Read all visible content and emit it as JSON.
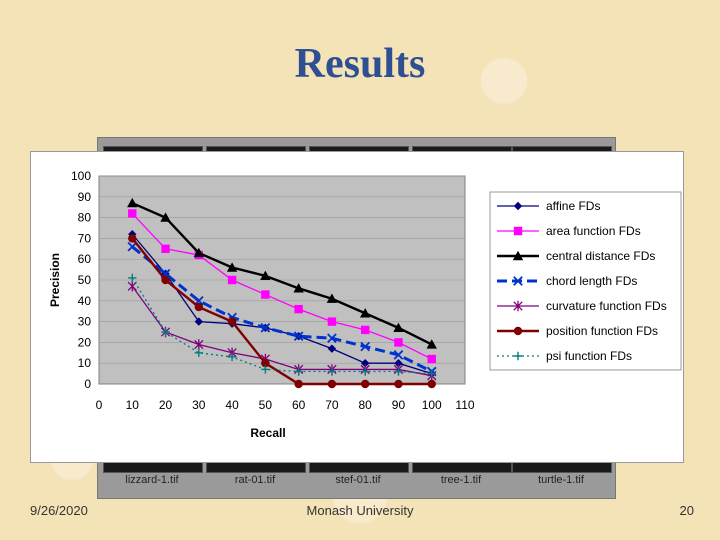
{
  "slide": {
    "title": "Results",
    "date": "9/26/2020",
    "organization": "Monash University",
    "page_number": "20"
  },
  "thumbnails": [
    "lizzard-1.tif",
    "rat-01.tif",
    "stef-01.tif",
    "tree-1.tif",
    "turtle-1.tif"
  ],
  "chart_data": {
    "type": "line",
    "title": "",
    "xlabel": "Recall",
    "ylabel": "Precision",
    "xlim": [
      0,
      110
    ],
    "ylim": [
      0,
      100
    ],
    "xticks": [
      0,
      10,
      20,
      30,
      40,
      50,
      60,
      70,
      80,
      90,
      100,
      110
    ],
    "yticks": [
      0,
      10,
      20,
      30,
      40,
      50,
      60,
      70,
      80,
      90,
      100
    ],
    "x": [
      10,
      20,
      30,
      40,
      50,
      60,
      70,
      80,
      90,
      100
    ],
    "series": [
      {
        "name": "affine FDs",
        "color": "#00007f",
        "marker": "diamond",
        "dash": "solid",
        "values": [
          72,
          53,
          30,
          29,
          27,
          23,
          17,
          10,
          10,
          5
        ]
      },
      {
        "name": "area function FDs",
        "color": "#ff00ff",
        "marker": "square",
        "dash": "solid",
        "values": [
          82,
          65,
          62,
          50,
          43,
          36,
          30,
          26,
          20,
          12
        ]
      },
      {
        "name": "central distance FDs",
        "color": "#000000",
        "marker": "triangle",
        "dash": "solid",
        "values": [
          87,
          80,
          63,
          56,
          52,
          46,
          41,
          34,
          27,
          19
        ]
      },
      {
        "name": "chord length FDs",
        "color": "#0033cc",
        "marker": "x",
        "dash": "dash",
        "values": [
          66,
          53,
          40,
          32,
          27,
          23,
          22,
          18,
          14,
          6
        ]
      },
      {
        "name": "curvature function FDs",
        "color": "#7f007f",
        "marker": "star",
        "dash": "solid",
        "values": [
          47,
          25,
          19,
          15,
          12,
          7,
          7,
          7,
          7,
          4
        ]
      },
      {
        "name": "position function FDs",
        "color": "#7f0000",
        "marker": "circle",
        "dash": "solid",
        "values": [
          70,
          50,
          37,
          30,
          10,
          0,
          0,
          0,
          0,
          0
        ]
      },
      {
        "name": "psi function FDs",
        "color": "#007f7f",
        "marker": "plus",
        "dash": "dot",
        "values": [
          51,
          25,
          15,
          13,
          7,
          6,
          6,
          6,
          6,
          5
        ]
      }
    ]
  }
}
